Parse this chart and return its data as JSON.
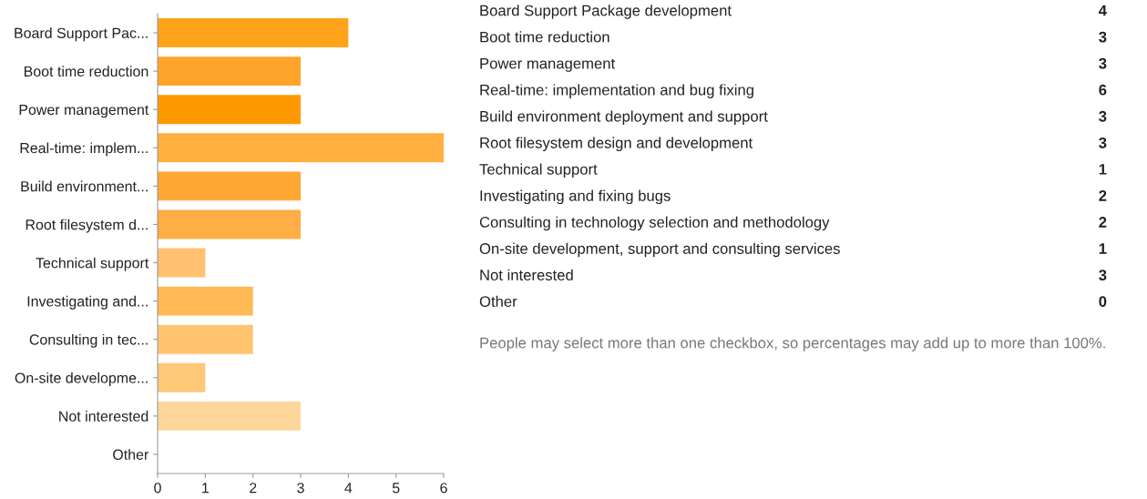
{
  "chart_data": [
    {
      "type": "bar",
      "orientation": "horizontal",
      "categories": [
        "Board Support Pac...",
        "Boot time reduction",
        "Power management",
        "Real-time: implem...",
        "Build environment...",
        "Root filesystem d...",
        "Technical support",
        "Investigating and...",
        "Consulting in tec...",
        "On-site developme...",
        "Not interested",
        "Other"
      ],
      "values": [
        4,
        3,
        3,
        6,
        3,
        3,
        1,
        2,
        2,
        1,
        3,
        0
      ],
      "colors": [
        "#ffa31a",
        "#ffa42a",
        "#ff9900",
        "#ffb03f",
        "#ffa733",
        "#ffad45",
        "#ffc170",
        "#ffb955",
        "#ffc46e",
        "#ffc778",
        "#ffd699",
        "#ffd699"
      ],
      "xlim": [
        0,
        6
      ],
      "xticks": [
        0,
        1,
        2,
        3,
        4,
        5,
        6
      ],
      "grid": false
    },
    {
      "type": "other",
      "categories": [
        "Board Support Package development",
        "Boot time reduction",
        "Power management",
        "Real-time: implementation and bug fixing",
        "Build environment deployment and support",
        "Root filesystem design and development",
        "Technical support",
        "Investigating and fixing bugs",
        "Consulting in technology selection and methodology",
        "On-site development, support and consulting services",
        "Not interested",
        "Other"
      ],
      "values": [
        4,
        3,
        3,
        6,
        3,
        3,
        1,
        2,
        2,
        1,
        3,
        0
      ],
      "data_labels": true,
      "annotations": [
        "People may select more than one checkbox, so percentages may add up to more than 100%."
      ]
    }
  ]
}
